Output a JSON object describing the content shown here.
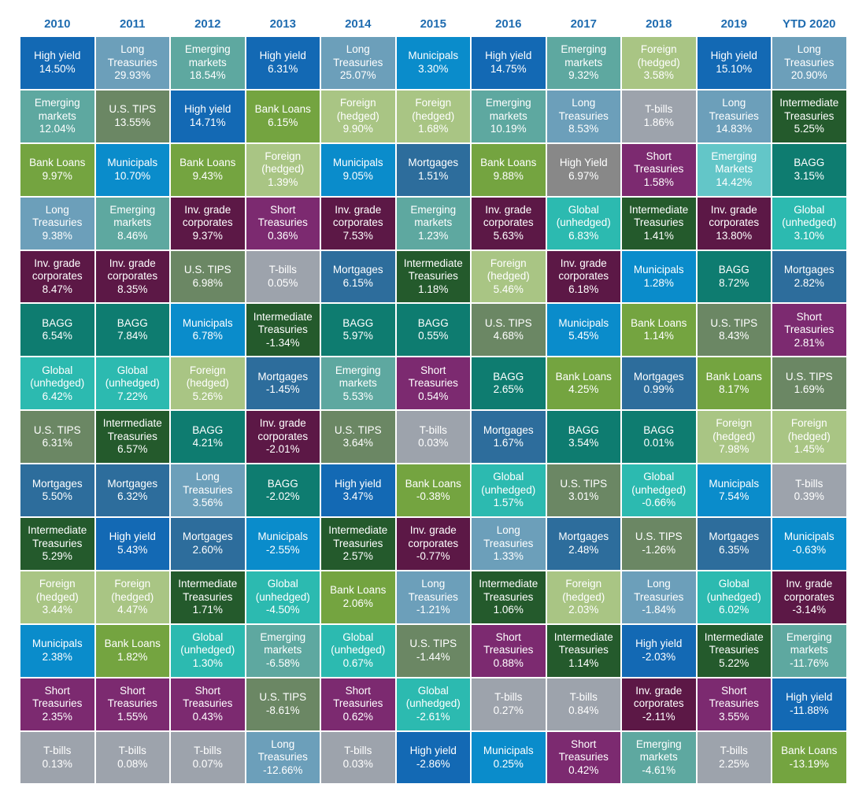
{
  "chart_data": {
    "type": "table",
    "title": "",
    "years": [
      "2010",
      "2011",
      "2012",
      "2013",
      "2014",
      "2015",
      "2016",
      "2017",
      "2018",
      "2019",
      "YTD 2020"
    ],
    "colors": {
      "High yield": "#1369b4",
      "Long Treasuries": "#6c9fba",
      "Emerging markets": "#5ea8a0",
      "Emerging Markets": "#63c6c8",
      "Bank Loans": "#74a440",
      "U.S. TIPS": "#6b8764",
      "Municipals": "#0a8ccb",
      "Inv. grade corporates": "#5c1846",
      "BAGG": "#0e7c70",
      "Global (unhedged)": "#2cbab0",
      "Mortgages": "#2d6d9c",
      "Intermediate Treasuries": "#245a2c",
      "Foreign (hedged)": "#a9c584",
      "Short Treasuries": "#7c2a70",
      "T-bills": "#9da3ac"
    },
    "columns": [
      [
        {
          "name": "High yield",
          "value": "14.50%"
        },
        {
          "name": "Emerging\nmarkets",
          "value": "12.04%"
        },
        {
          "name": "Bank Loans",
          "value": "9.97%"
        },
        {
          "name": "Long\nTreasuries",
          "value": "9.38%"
        },
        {
          "name": "Inv. grade\ncorporates",
          "value": "8.47%"
        },
        {
          "name": "BAGG",
          "value": "6.54%"
        },
        {
          "name": "Global\n(unhedged)",
          "value": "6.42%"
        },
        {
          "name": "U.S. TIPS",
          "value": "6.31%"
        },
        {
          "name": "Mortgages",
          "value": "5.50%"
        },
        {
          "name": "Intermediate\nTreasuries",
          "value": "5.29%"
        },
        {
          "name": "Foreign\n(hedged)",
          "value": "3.44%"
        },
        {
          "name": "Municipals",
          "value": "2.38%"
        },
        {
          "name": "Short\nTreasuries",
          "value": "2.35%"
        },
        {
          "name": "T-bills",
          "value": "0.13%"
        }
      ],
      [
        {
          "name": "Long\nTreasuries",
          "value": "29.93%"
        },
        {
          "name": "U.S. TIPS",
          "value": "13.55%"
        },
        {
          "name": "Municipals",
          "value": "10.70%"
        },
        {
          "name": "Emerging\nmarkets",
          "value": "8.46%"
        },
        {
          "name": "Inv. grade\ncorporates",
          "value": "8.35%"
        },
        {
          "name": "BAGG",
          "value": "7.84%"
        },
        {
          "name": "Global\n(unhedged)",
          "value": "7.22%"
        },
        {
          "name": "Intermediate\nTreasuries",
          "value": "6.57%"
        },
        {
          "name": "Mortgages",
          "value": "6.32%"
        },
        {
          "name": "High yield",
          "value": "5.43%"
        },
        {
          "name": "Foreign\n(hedged)",
          "value": "4.47%"
        },
        {
          "name": "Bank Loans",
          "value": "1.82%"
        },
        {
          "name": "Short\nTreasuries",
          "value": "1.55%"
        },
        {
          "name": "T-bills",
          "value": "0.08%"
        }
      ],
      [
        {
          "name": "Emerging\nmarkets",
          "value": "18.54%"
        },
        {
          "name": "High yield",
          "value": "14.71%"
        },
        {
          "name": "Bank Loans",
          "value": "9.43%"
        },
        {
          "name": "Inv. grade\ncorporates",
          "value": "9.37%"
        },
        {
          "name": "U.S. TIPS",
          "value": "6.98%"
        },
        {
          "name": "Municipals",
          "value": "6.78%"
        },
        {
          "name": "Foreign\n(hedged)",
          "value": "5.26%"
        },
        {
          "name": "BAGG",
          "value": "4.21%"
        },
        {
          "name": "Long\nTreasuries",
          "value": "3.56%"
        },
        {
          "name": "Mortgages",
          "value": "2.60%"
        },
        {
          "name": "Intermediate\nTreasuries",
          "value": "1.71%"
        },
        {
          "name": "Global\n(unhedged)",
          "value": "1.30%"
        },
        {
          "name": "Short\nTreasuries",
          "value": "0.43%"
        },
        {
          "name": "T-bills",
          "value": "0.07%"
        }
      ],
      [
        {
          "name": "High yield",
          "value": "6.31%"
        },
        {
          "name": "Bank Loans",
          "value": "6.15%"
        },
        {
          "name": "Foreign\n(hedged)",
          "value": "1.39%"
        },
        {
          "name": "Short\nTreasuries",
          "value": "0.36%"
        },
        {
          "name": "T-bills",
          "value": "0.05%"
        },
        {
          "name": "Intermediate\nTreasuries",
          "value": "-1.34%"
        },
        {
          "name": "Mortgages",
          "value": "-1.45%"
        },
        {
          "name": "Inv. grade\ncorporates",
          "value": "-2.01%"
        },
        {
          "name": "BAGG",
          "value": "-2.02%"
        },
        {
          "name": "Municipals",
          "value": "-2.55%"
        },
        {
          "name": "Global\n(unhedged)",
          "value": "-4.50%"
        },
        {
          "name": "Emerging\nmarkets",
          "value": "-6.58%"
        },
        {
          "name": "U.S. TIPS",
          "value": "-8.61%"
        },
        {
          "name": "Long\nTreasuries",
          "value": "-12.66%"
        }
      ],
      [
        {
          "name": "Long\nTreasuries",
          "value": "25.07%"
        },
        {
          "name": "Foreign\n(hedged)",
          "value": "9.90%"
        },
        {
          "name": "Municipals",
          "value": "9.05%"
        },
        {
          "name": "Inv. grade\ncorporates",
          "value": "7.53%"
        },
        {
          "name": "Mortgages",
          "value": "6.15%"
        },
        {
          "name": "BAGG",
          "value": "5.97%"
        },
        {
          "name": "Emerging\nmarkets",
          "value": "5.53%"
        },
        {
          "name": "U.S. TIPS",
          "value": "3.64%"
        },
        {
          "name": "High yield",
          "value": "3.47%"
        },
        {
          "name": "Intermediate\nTreasuries",
          "value": "2.57%"
        },
        {
          "name": "Bank Loans",
          "value": "2.06%"
        },
        {
          "name": "Global\n(unhedged)",
          "value": "0.67%"
        },
        {
          "name": "Short\nTreasuries",
          "value": "0.62%"
        },
        {
          "name": "T-bills",
          "value": "0.03%"
        }
      ],
      [
        {
          "name": "Municipals",
          "value": "3.30%"
        },
        {
          "name": "Foreign\n(hedged)",
          "value": "1.68%"
        },
        {
          "name": "Mortgages",
          "value": "1.51%"
        },
        {
          "name": "Emerging\nmarkets",
          "value": "1.23%"
        },
        {
          "name": "Intermediate\nTreasuries",
          "value": "1.18%"
        },
        {
          "name": "BAGG",
          "value": "0.55%"
        },
        {
          "name": "Short\nTreasuries",
          "value": "0.54%"
        },
        {
          "name": "T-bills",
          "value": "0.03%"
        },
        {
          "name": "Bank Loans",
          "value": "-0.38%"
        },
        {
          "name": "Inv. grade\ncorporates",
          "value": "-0.77%"
        },
        {
          "name": "Long\nTreasuries",
          "value": "-1.21%"
        },
        {
          "name": "U.S. TIPS",
          "value": "-1.44%"
        },
        {
          "name": "Global\n(unhedged)",
          "value": "-2.61%"
        },
        {
          "name": "High yield",
          "value": "-2.86%"
        }
      ],
      [
        {
          "name": "High yield",
          "value": "14.75%"
        },
        {
          "name": "Emerging\nmarkets",
          "value": "10.19%"
        },
        {
          "name": "Bank Loans",
          "value": "9.88%"
        },
        {
          "name": "Inv. grade\ncorporates",
          "value": "5.63%"
        },
        {
          "name": "Foreign\n(hedged)",
          "value": "5.46%"
        },
        {
          "name": "U.S. TIPS",
          "value": "4.68%"
        },
        {
          "name": "BAGG",
          "value": "2.65%"
        },
        {
          "name": "Mortgages",
          "value": "1.67%"
        },
        {
          "name": "Global\n(unhedged)",
          "value": "1.57%"
        },
        {
          "name": "Long\nTreasuries",
          "value": "1.33%"
        },
        {
          "name": "Intermediate\nTreasuries",
          "value": "1.06%"
        },
        {
          "name": "Short\nTreasuries",
          "value": "0.88%"
        },
        {
          "name": "T-bills",
          "value": "0.27%"
        },
        {
          "name": "Municipals",
          "value": "0.25%"
        }
      ],
      [
        {
          "name": "Emerging\nmarkets",
          "value": "9.32%"
        },
        {
          "name": "Long\nTreasuries",
          "value": "8.53%"
        },
        {
          "name": "High Yield",
          "value": "6.97%"
        },
        {
          "name": "Global\n(unhedged)",
          "value": "6.83%"
        },
        {
          "name": "Inv. grade\ncorporates",
          "value": "6.18%"
        },
        {
          "name": "Municipals",
          "value": "5.45%"
        },
        {
          "name": "Bank Loans",
          "value": "4.25%"
        },
        {
          "name": "BAGG",
          "value": "3.54%"
        },
        {
          "name": "U.S. TIPS",
          "value": "3.01%"
        },
        {
          "name": "Mortgages",
          "value": "2.48%"
        },
        {
          "name": "Foreign\n(hedged)",
          "value": "2.03%"
        },
        {
          "name": "Intermediate\nTreasuries",
          "value": "1.14%"
        },
        {
          "name": "T-bills",
          "value": "0.84%"
        },
        {
          "name": "Short\nTreasuries",
          "value": "0.42%"
        }
      ],
      [
        {
          "name": "Foreign\n(hedged)",
          "value": "3.58%"
        },
        {
          "name": "T-bills",
          "value": "1.86%"
        },
        {
          "name": "Short\nTreasuries",
          "value": "1.58%"
        },
        {
          "name": "Intermediate\nTreasuries",
          "value": "1.41%"
        },
        {
          "name": "Municipals",
          "value": "1.28%"
        },
        {
          "name": "Bank Loans",
          "value": "1.14%"
        },
        {
          "name": "Mortgages",
          "value": "0.99%"
        },
        {
          "name": "BAGG",
          "value": "0.01%"
        },
        {
          "name": "Global\n(unhedged)",
          "value": "-0.66%"
        },
        {
          "name": "U.S. TIPS",
          "value": "-1.26%"
        },
        {
          "name": "Long\nTreasuries",
          "value": "-1.84%"
        },
        {
          "name": "High yield",
          "value": "-2.03%"
        },
        {
          "name": "Inv. grade\ncorporates",
          "value": "-2.11%"
        },
        {
          "name": "Emerging\nmarkets",
          "value": "-4.61%"
        }
      ],
      [
        {
          "name": "High yield",
          "value": "15.10%"
        },
        {
          "name": "Long\nTreasuries",
          "value": "14.83%"
        },
        {
          "name": "Emerging\nMarkets",
          "value": "14.42%"
        },
        {
          "name": "Inv. grade\ncorporates",
          "value": "13.80%"
        },
        {
          "name": "BAGG",
          "value": "8.72%"
        },
        {
          "name": "U.S. TIPS",
          "value": "8.43%"
        },
        {
          "name": "Bank Loans",
          "value": "8.17%"
        },
        {
          "name": "Foreign\n(hedged)",
          "value": "7.98%"
        },
        {
          "name": "Municipals",
          "value": "7.54%"
        },
        {
          "name": "Mortgages",
          "value": "6.35%"
        },
        {
          "name": "Global\n(unhedged)",
          "value": "6.02%"
        },
        {
          "name": "Intermediate\nTreasuries",
          "value": "5.22%"
        },
        {
          "name": "Short\nTreasuries",
          "value": "3.55%"
        },
        {
          "name": "T-bills",
          "value": "2.25%"
        }
      ],
      [
        {
          "name": "Long\nTreasuries",
          "value": "20.90%"
        },
        {
          "name": "Intermediate\nTreasuries",
          "value": "5.25%"
        },
        {
          "name": "BAGG",
          "value": "3.15%"
        },
        {
          "name": "Global\n(unhedged)",
          "value": "3.10%"
        },
        {
          "name": "Mortgages",
          "value": "2.82%"
        },
        {
          "name": "Short\nTreasuries",
          "value": "2.81%"
        },
        {
          "name": "U.S. TIPS",
          "value": "1.69%"
        },
        {
          "name": "Foreign\n(hedged)",
          "value": "1.45%"
        },
        {
          "name": "T-bills",
          "value": "0.39%"
        },
        {
          "name": "Municipals",
          "value": "-0.63%"
        },
        {
          "name": "Inv. grade\ncorporates",
          "value": "-3.14%"
        },
        {
          "name": "Emerging\nmarkets",
          "value": "-11.76%"
        },
        {
          "name": "High yield",
          "value": "-11.88%"
        },
        {
          "name": "Bank Loans",
          "value": "-13.19%"
        }
      ]
    ]
  }
}
